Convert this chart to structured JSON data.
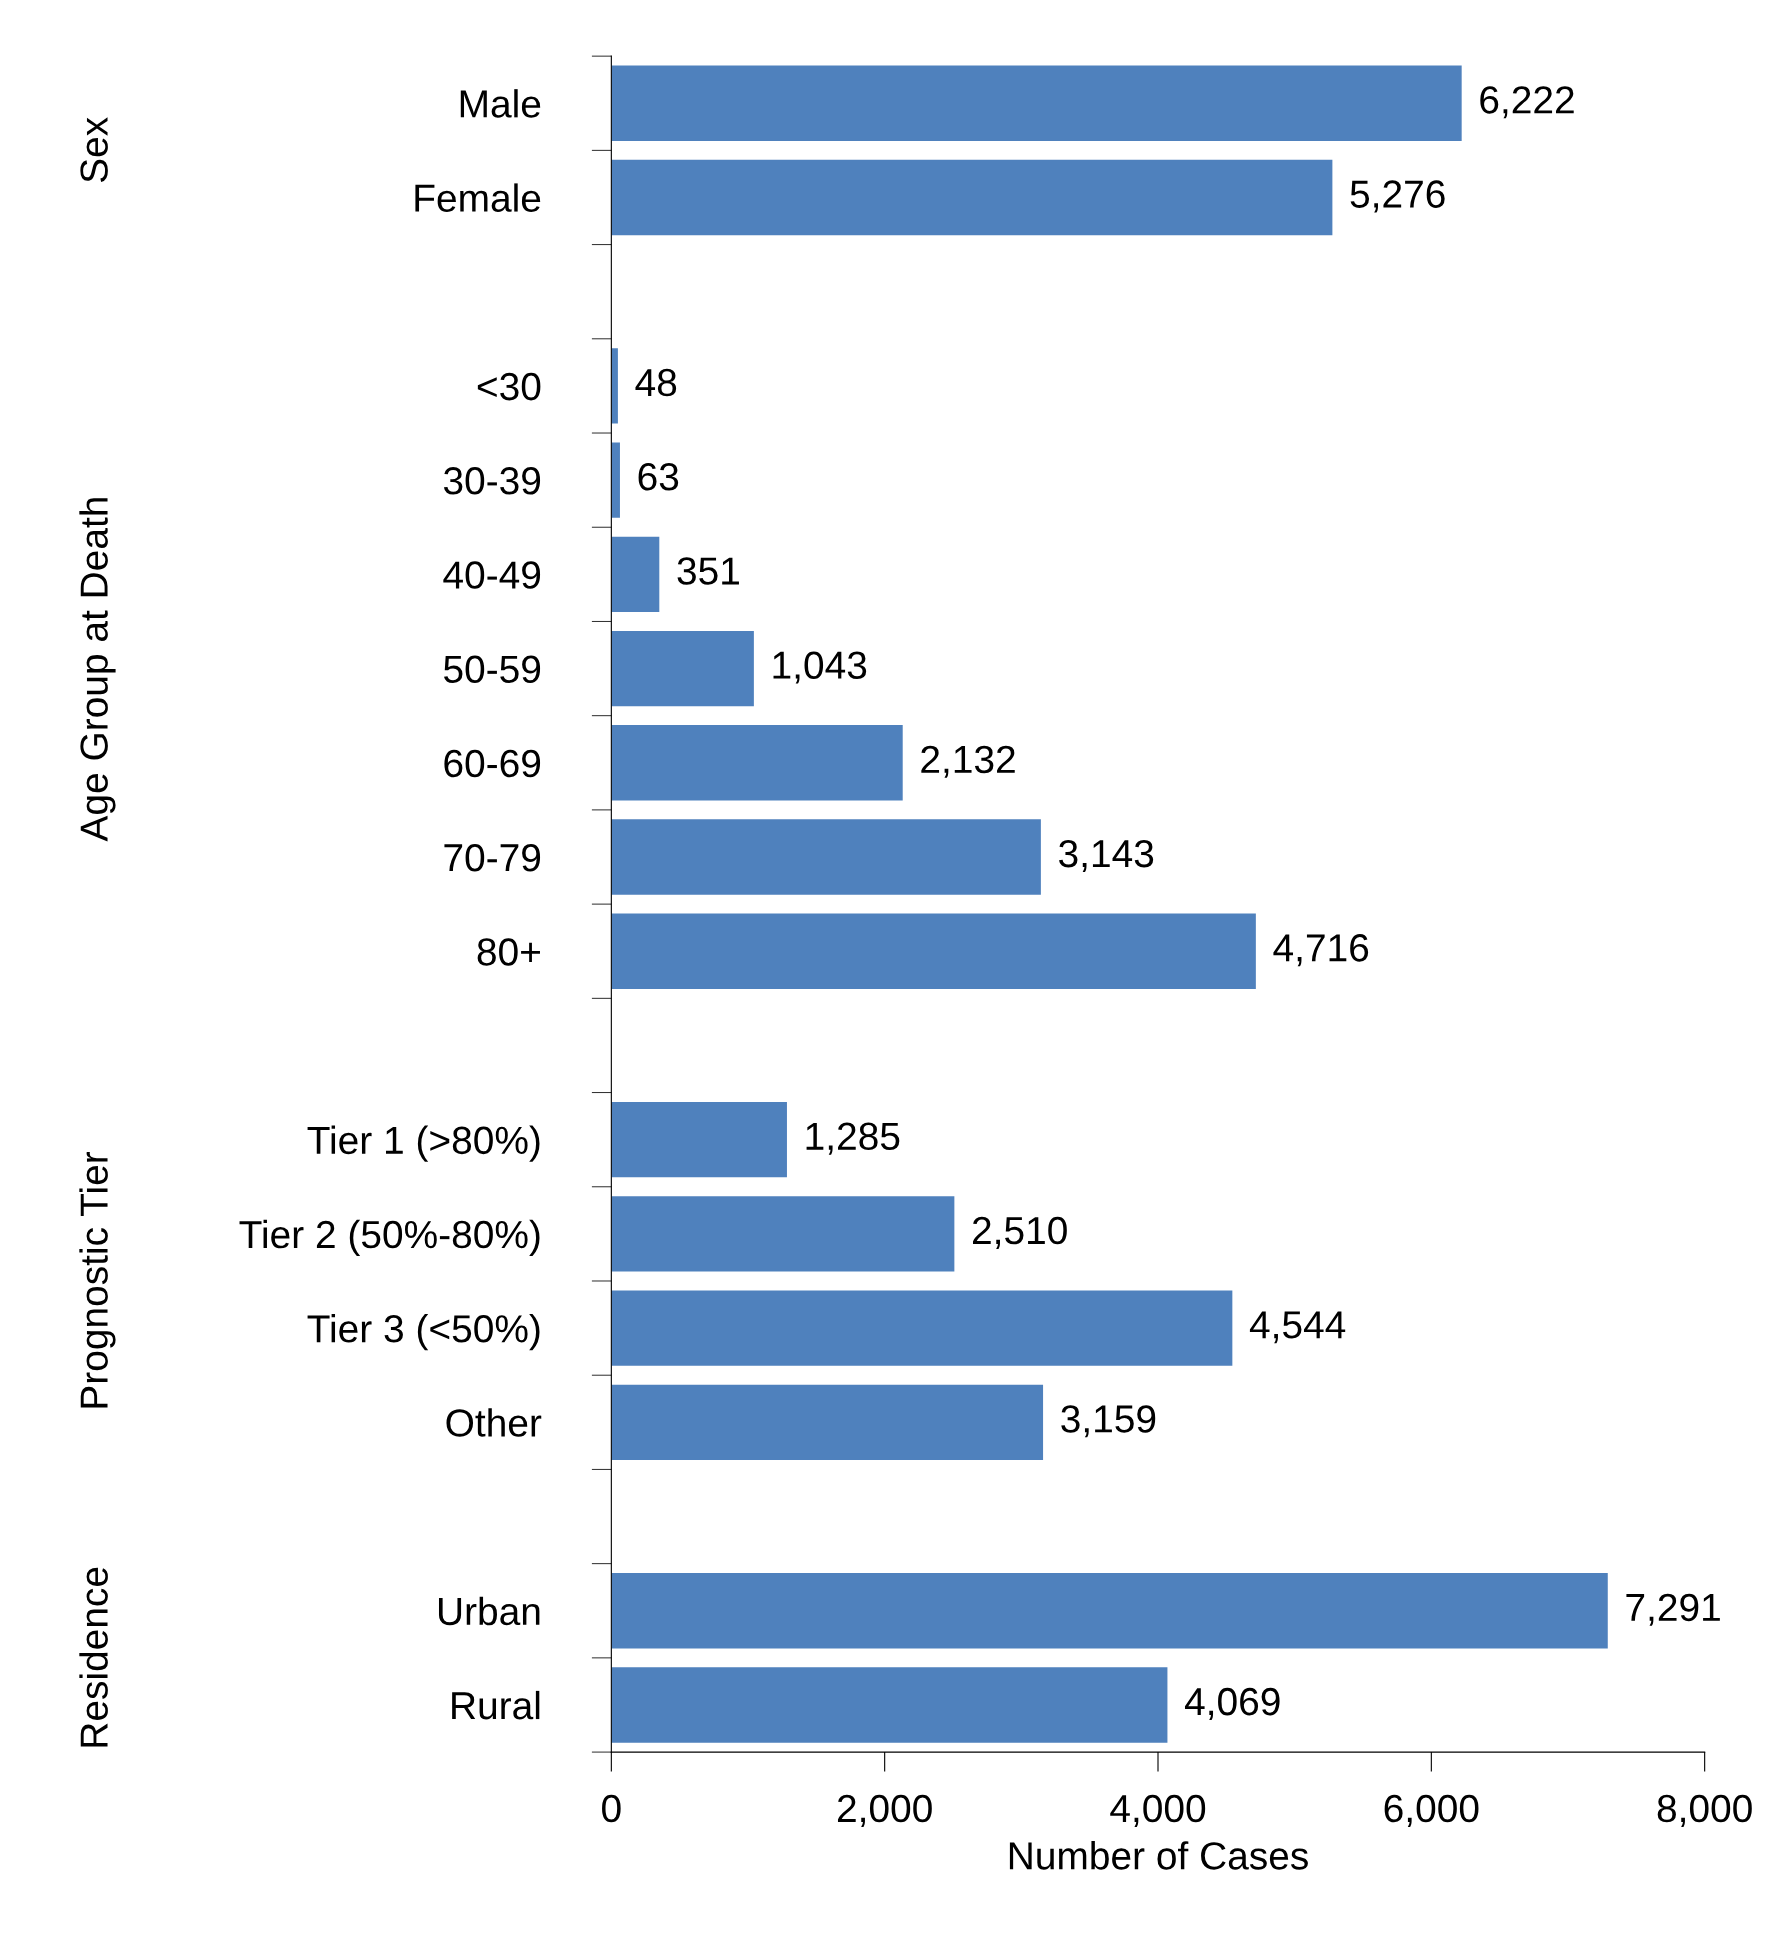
{
  "chart_data": {
    "type": "bar",
    "orientation": "horizontal",
    "xlabel": "Number of Cases",
    "categories": [
      "Male",
      "Female",
      null,
      "<30",
      "30-39",
      "40-49",
      "50-59",
      "60-69",
      "70-79",
      "80+",
      null,
      "Tier 1 (>80%)",
      "Tier 2 (50%-80%)",
      "Tier 3 (<50%)",
      "Other",
      null,
      "Urban",
      "Rural"
    ],
    "values": [
      6222,
      5276,
      null,
      48,
      63,
      351,
      1043,
      2132,
      3143,
      4716,
      null,
      1285,
      2510,
      4544,
      3159,
      null,
      7291,
      4069
    ],
    "value_labels": [
      "6,222",
      "5,276",
      null,
      "48",
      "63",
      "351",
      "1,043",
      "2,132",
      "3,143",
      "4,716",
      null,
      "1,285",
      "2,510",
      "4,544",
      "3,159",
      null,
      "7,291",
      "4,069"
    ],
    "color": "#4f81bd",
    "annotations": [
      "Sex",
      "Age Group at Death",
      "Prognostic Tier",
      "Residence"
    ],
    "xlim": [
      0,
      8000
    ],
    "xticks": [
      0,
      {
        "value": 2000,
        "label": "2,000"
      },
      {
        "value": 4000,
        "label": "4,000"
      },
      {
        "value": 6000,
        "label": "6,000"
      },
      {
        "value": 8000,
        "label": "8,000"
      }
    ],
    "grid": false
  }
}
